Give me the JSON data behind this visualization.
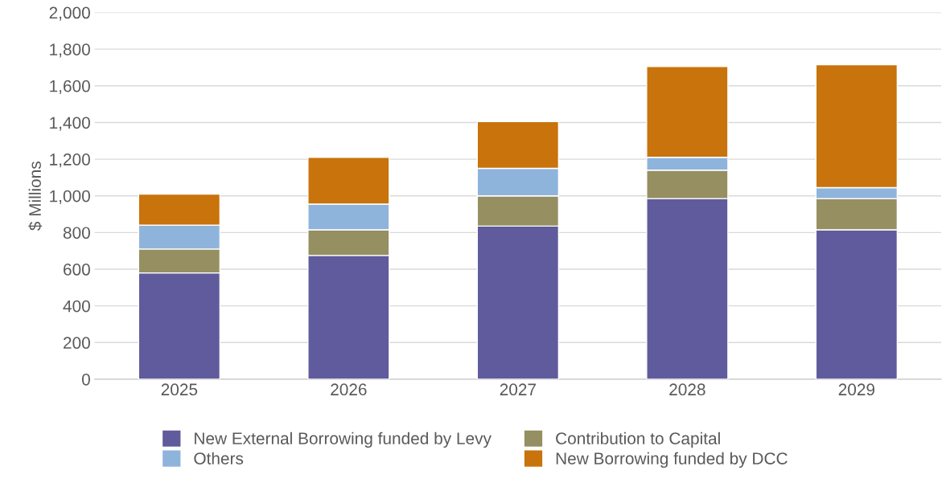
{
  "chart_data": {
    "type": "bar",
    "stacked": true,
    "ylabel": "$ Millions",
    "categories": [
      "2025",
      "2026",
      "2027",
      "2028",
      "2029"
    ],
    "series": [
      {
        "name": "New External Borrowing funded by Levy",
        "color": "#5f5b9c",
        "values": [
          580,
          675,
          835,
          985,
          815
        ]
      },
      {
        "name": "Contribution to Capital",
        "color": "#958f62",
        "values": [
          130,
          140,
          165,
          155,
          170
        ]
      },
      {
        "name": "Others",
        "color": "#8fb4dc",
        "values": [
          130,
          140,
          150,
          70,
          60
        ]
      },
      {
        "name": "New Borrowing funded by DCC",
        "color": "#c8730b",
        "values": [
          170,
          255,
          255,
          495,
          670
        ]
      }
    ],
    "ylim": [
      0,
      2000
    ],
    "yticks": [
      0,
      200,
      400,
      600,
      800,
      {
        "value": 1000,
        "label": "1,000"
      },
      {
        "value": 1200,
        "label": "1,200"
      },
      {
        "value": 1400,
        "label": "1,400"
      },
      {
        "value": 1600,
        "label": "1,600"
      },
      {
        "value": 1800,
        "label": "1,800"
      },
      {
        "value": 2000,
        "label": "2,000"
      }
    ],
    "grid": "y",
    "legend": "bottom"
  }
}
